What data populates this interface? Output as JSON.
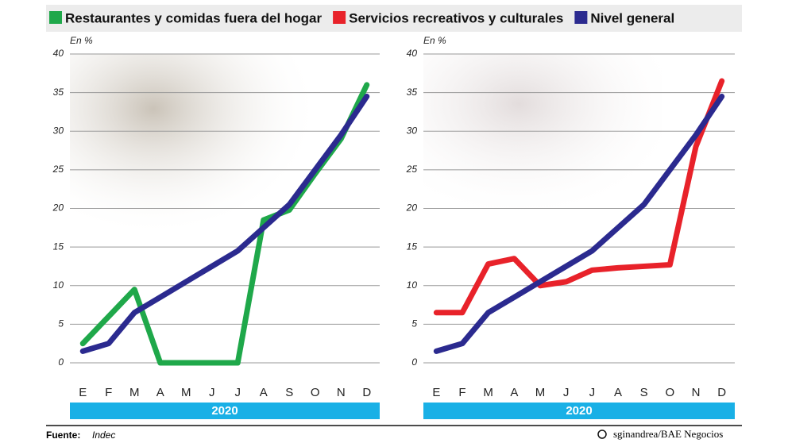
{
  "chart_data": [
    {
      "type": "line",
      "y_label": "En %",
      "band_label": "2020",
      "categories": [
        "E",
        "F",
        "M",
        "A",
        "M",
        "J",
        "J",
        "A",
        "S",
        "O",
        "N",
        "D"
      ],
      "series": [
        {
          "name": "Restaurantes y comidas fuera del hogar",
          "color": "#1fa84a",
          "values": [
            2.5,
            6,
            9.5,
            0,
            0,
            0,
            0,
            18.5,
            19.8,
            24.5,
            29,
            36
          ]
        },
        {
          "name": "Nivel general",
          "color": "#2b2a8f",
          "values": [
            1.5,
            2.5,
            6.5,
            8.5,
            10.5,
            12.5,
            14.5,
            17.5,
            20.5,
            25,
            29.5,
            34.5
          ]
        }
      ],
      "ylim": [
        0,
        40
      ],
      "yticks": [
        0,
        5,
        10,
        15,
        20,
        25,
        30,
        35,
        40
      ],
      "grid": true
    },
    {
      "type": "line",
      "y_label": "En %",
      "band_label": "2020",
      "categories": [
        "E",
        "F",
        "M",
        "A",
        "M",
        "J",
        "J",
        "A",
        "S",
        "O",
        "N",
        "D"
      ],
      "series": [
        {
          "name": "Servicios recreativos y culturales",
          "color": "#e8222a",
          "values": [
            6.5,
            6.5,
            12.8,
            13.5,
            10,
            10.5,
            12,
            12.3,
            12.5,
            12.7,
            28,
            36.5
          ]
        },
        {
          "name": "Nivel general",
          "color": "#2b2a8f",
          "values": [
            1.5,
            2.5,
            6.5,
            8.5,
            10.5,
            12.5,
            14.5,
            17.5,
            20.5,
            25,
            29.5,
            34.5
          ]
        }
      ],
      "ylim": [
        0,
        40
      ],
      "yticks": [
        0,
        5,
        10,
        15,
        20,
        25,
        30,
        35,
        40
      ],
      "grid": true
    }
  ],
  "source": {
    "label": "Fuente:",
    "text": "Indec"
  },
  "credit": "sginandrea/BAE Negocios"
}
